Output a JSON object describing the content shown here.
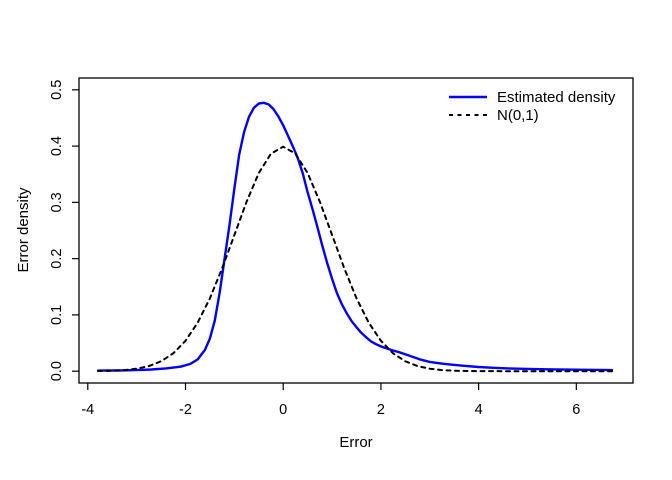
{
  "figure": {
    "background": "#ffffff",
    "foreground": "#000000"
  },
  "chart_data": {
    "type": "line",
    "title": "",
    "xlabel": "Error",
    "ylabel": "Error density",
    "xlim": [
      -4.18,
      7.16
    ],
    "ylim": [
      -0.021,
      0.521
    ],
    "grid": false,
    "x_ticks": {
      "values": [
        -4,
        -2,
        0,
        2,
        4,
        6
      ],
      "labels": [
        "-4",
        "-2",
        "0",
        "2",
        "4",
        "6"
      ]
    },
    "y_ticks": {
      "values": [
        0.0,
        0.1,
        0.2,
        0.3,
        0.4,
        0.5
      ],
      "labels": [
        "0.0",
        "0.1",
        "0.2",
        "0.3",
        "0.4",
        "0.5"
      ]
    },
    "legend": {
      "position": "topright",
      "box": false,
      "entries": [
        {
          "label": "Estimated density",
          "color": "#0000ff",
          "line_style": "solid"
        },
        {
          "label": "N(0,1)",
          "color": "#000000",
          "line_style": "dashed"
        }
      ]
    },
    "series": [
      {
        "name": "Estimated density",
        "color": "#0000ff",
        "line_style": "solid",
        "line_width": 2.4,
        "points": [
          [
            -3.79,
            0.001
          ],
          [
            -3.4,
            0.0012
          ],
          [
            -3.0,
            0.002
          ],
          [
            -2.7,
            0.003
          ],
          [
            -2.4,
            0.005
          ],
          [
            -2.1,
            0.008
          ],
          [
            -1.9,
            0.013
          ],
          [
            -1.75,
            0.021
          ],
          [
            -1.6,
            0.038
          ],
          [
            -1.5,
            0.058
          ],
          [
            -1.4,
            0.09
          ],
          [
            -1.3,
            0.14
          ],
          [
            -1.2,
            0.2
          ],
          [
            -1.1,
            0.26
          ],
          [
            -1.0,
            0.325
          ],
          [
            -0.9,
            0.385
          ],
          [
            -0.8,
            0.425
          ],
          [
            -0.7,
            0.452
          ],
          [
            -0.6,
            0.468
          ],
          [
            -0.5,
            0.4757
          ],
          [
            -0.4,
            0.477
          ],
          [
            -0.3,
            0.474
          ],
          [
            -0.2,
            0.466
          ],
          [
            -0.1,
            0.453
          ],
          [
            0.0,
            0.437
          ],
          [
            0.1,
            0.418
          ],
          [
            0.2,
            0.399
          ],
          [
            0.3,
            0.378
          ],
          [
            0.4,
            0.352
          ],
          [
            0.5,
            0.318
          ],
          [
            0.6,
            0.288
          ],
          [
            0.7,
            0.256
          ],
          [
            0.8,
            0.223
          ],
          [
            0.9,
            0.192
          ],
          [
            1.0,
            0.164
          ],
          [
            1.1,
            0.139
          ],
          [
            1.2,
            0.119
          ],
          [
            1.3,
            0.103
          ],
          [
            1.4,
            0.089
          ],
          [
            1.5,
            0.078
          ],
          [
            1.6,
            0.068
          ],
          [
            1.7,
            0.06
          ],
          [
            1.8,
            0.053
          ],
          [
            1.9,
            0.048
          ],
          [
            2.0,
            0.044
          ],
          [
            2.1,
            0.041
          ],
          [
            2.2,
            0.038
          ],
          [
            2.4,
            0.033
          ],
          [
            2.6,
            0.027
          ],
          [
            2.8,
            0.021
          ],
          [
            3.0,
            0.0165
          ],
          [
            3.2,
            0.014
          ],
          [
            3.4,
            0.012
          ],
          [
            3.7,
            0.0095
          ],
          [
            4.0,
            0.0075
          ],
          [
            4.3,
            0.006
          ],
          [
            4.6,
            0.005
          ],
          [
            5.0,
            0.004
          ],
          [
            5.4,
            0.0033
          ],
          [
            5.8,
            0.0028
          ],
          [
            6.2,
            0.0024
          ],
          [
            6.5,
            0.0022
          ],
          [
            6.73,
            0.002
          ]
        ]
      },
      {
        "name": "N(0,1)",
        "color": "#000000",
        "line_style": "dashed",
        "line_width": 2,
        "points": [
          [
            -3.79,
            0.0003
          ],
          [
            -3.5,
            0.0009
          ],
          [
            -3.25,
            0.002
          ],
          [
            -3.0,
            0.0044
          ],
          [
            -2.75,
            0.0091
          ],
          [
            -2.5,
            0.0175
          ],
          [
            -2.25,
            0.0317
          ],
          [
            -2.0,
            0.054
          ],
          [
            -1.75,
            0.0863
          ],
          [
            -1.5,
            0.1295
          ],
          [
            -1.25,
            0.1826
          ],
          [
            -1.0,
            0.242
          ],
          [
            -0.75,
            0.3011
          ],
          [
            -0.5,
            0.3521
          ],
          [
            -0.25,
            0.3867
          ],
          [
            0.0,
            0.3989
          ],
          [
            0.25,
            0.3867
          ],
          [
            0.5,
            0.3521
          ],
          [
            0.75,
            0.3011
          ],
          [
            1.0,
            0.242
          ],
          [
            1.25,
            0.1826
          ],
          [
            1.5,
            0.1295
          ],
          [
            1.75,
            0.0863
          ],
          [
            2.0,
            0.054
          ],
          [
            2.25,
            0.0317
          ],
          [
            2.5,
            0.0175
          ],
          [
            2.75,
            0.0091
          ],
          [
            3.0,
            0.0044
          ],
          [
            3.25,
            0.002
          ],
          [
            3.5,
            0.0009
          ],
          [
            3.75,
            0.0003
          ],
          [
            4.0,
            0.0001
          ],
          [
            4.5,
            0.0
          ],
          [
            5.0,
            0.0
          ],
          [
            5.5,
            0.0
          ],
          [
            6.0,
            0.0
          ],
          [
            6.73,
            0.0
          ]
        ]
      }
    ]
  }
}
